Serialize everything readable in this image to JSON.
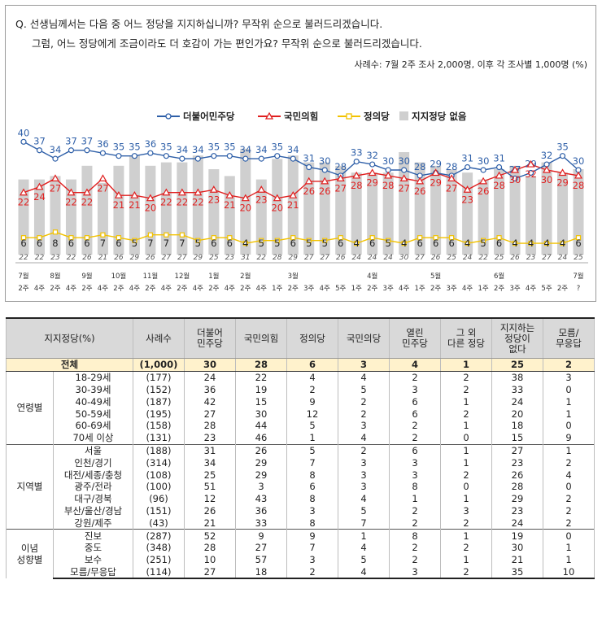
{
  "question": {
    "line1": "Q. 선생님께서는 다음 중 어느 정당을 지지하십니까? 무작위 순으로 불러드리겠습니다.",
    "line2": "그럼, 어느 정당에게 조금이라도 더 호감이 가는 편인가요? 무작위 순으로 불러드리겠습니다.",
    "sample_note": "사례수: 7월 2주 조사 2,000명, 이후 각 조사별 1,000명 (%)"
  },
  "colors": {
    "dem": "#2e5fa8",
    "ppp": "#e02020",
    "justice": "#f2c200",
    "none_bar": "#cfcfcf"
  },
  "chart_data": {
    "type": "line",
    "x_top": [
      "7월",
      "",
      "8월",
      "",
      "9월",
      "",
      "10월",
      "",
      "11월",
      "",
      "12월",
      "",
      "1월",
      "",
      "2월",
      "",
      "",
      "3월",
      "",
      "",
      "",
      "",
      "4월",
      "",
      "",
      "",
      "5월",
      "",
      "",
      "",
      "6월",
      "",
      "",
      "",
      "",
      "7월"
    ],
    "x_week": [
      "2주",
      "4주",
      "2주",
      "4주",
      "2주",
      "4주",
      "2주",
      "4주",
      "2주",
      "4주",
      "2주",
      "4주",
      "2주",
      "4주",
      "2주",
      "4주",
      "1주",
      "2주",
      "3주",
      "4주",
      "5주",
      "1주",
      "2주",
      "3주",
      "4주",
      "1주",
      "2주",
      "3주",
      "4주",
      "1주",
      "2주",
      "3주",
      "4주",
      "5주",
      "2주",
      "?"
    ],
    "series": [
      {
        "name": "더불어민주당",
        "values": [
          40,
          37,
          34,
          37,
          37,
          36,
          35,
          35,
          36,
          35,
          34,
          34,
          35,
          35,
          34,
          34,
          35,
          34,
          31,
          30,
          28,
          33,
          32,
          30,
          30,
          28,
          29,
          28,
          31,
          30,
          31,
          27,
          29,
          32,
          35,
          30
        ]
      },
      {
        "name": "국민의힘",
        "values": [
          22,
          24,
          27,
          22,
          22,
          27,
          21,
          21,
          20,
          22,
          22,
          22,
          23,
          21,
          20,
          23,
          20,
          21,
          26,
          26,
          27,
          28,
          29,
          28,
          27,
          26,
          29,
          27,
          23,
          26,
          28,
          30,
          32,
          30,
          29,
          28
        ]
      },
      {
        "name": "정의당",
        "values": [
          6,
          6,
          8,
          6,
          6,
          7,
          6,
          5,
          7,
          7,
          7,
          5,
          6,
          6,
          4,
          5,
          5,
          6,
          5,
          5,
          6,
          4,
          6,
          5,
          4,
          6,
          6,
          6,
          4,
          5,
          6,
          4,
          4,
          4,
          4,
          6
        ]
      },
      {
        "name": "지지정당 없음",
        "values": [
          22,
          22,
          23,
          22,
          26,
          21,
          26,
          29,
          26,
          27,
          27,
          29,
          25,
          23,
          31,
          22,
          28,
          29,
          27,
          27,
          26,
          24,
          24,
          24,
          30,
          27,
          26,
          25,
          24,
          22,
          25,
          26,
          23,
          27,
          24,
          25
        ]
      }
    ],
    "ylim": [
      0,
      45
    ]
  },
  "table": {
    "headers": [
      "지지정당(%)",
      "사례수",
      "더불어\n민주당",
      "국민의힘",
      "정의당",
      "국민의당",
      "열린\n민주당",
      "그 외\n다른 정당",
      "지지하는\n정당이\n없다",
      "모름/\n무응답"
    ],
    "total": {
      "label": "전체",
      "n": "(1,000)",
      "vals": [
        "30",
        "28",
        "6",
        "3",
        "4",
        "1",
        "25",
        "2"
      ]
    },
    "groups": [
      {
        "name": "연령별",
        "rows": [
          {
            "label": "18-29세",
            "n": "(177)",
            "vals": [
              "24",
              "22",
              "4",
              "4",
              "2",
              "2",
              "38",
              "3"
            ]
          },
          {
            "label": "30-39세",
            "n": "(152)",
            "vals": [
              "36",
              "19",
              "2",
              "5",
              "3",
              "2",
              "33",
              "0"
            ]
          },
          {
            "label": "40-49세",
            "n": "(187)",
            "vals": [
              "42",
              "15",
              "9",
              "2",
              "6",
              "1",
              "24",
              "1"
            ]
          },
          {
            "label": "50-59세",
            "n": "(195)",
            "vals": [
              "27",
              "30",
              "12",
              "2",
              "6",
              "2",
              "20",
              "1"
            ]
          },
          {
            "label": "60-69세",
            "n": "(158)",
            "vals": [
              "28",
              "44",
              "5",
              "3",
              "2",
              "1",
              "18",
              "0"
            ]
          },
          {
            "label": "70세 이상",
            "n": "(131)",
            "vals": [
              "23",
              "46",
              "1",
              "4",
              "2",
              "0",
              "15",
              "9"
            ]
          }
        ]
      },
      {
        "name": "지역별",
        "rows": [
          {
            "label": "서울",
            "n": "(188)",
            "vals": [
              "31",
              "26",
              "5",
              "2",
              "6",
              "1",
              "27",
              "1"
            ]
          },
          {
            "label": "인천/경기",
            "n": "(314)",
            "vals": [
              "34",
              "29",
              "7",
              "3",
              "3",
              "1",
              "23",
              "2"
            ]
          },
          {
            "label": "대전/세종/충청",
            "n": "(108)",
            "vals": [
              "25",
              "29",
              "8",
              "3",
              "3",
              "2",
              "26",
              "4"
            ]
          },
          {
            "label": "광주/전라",
            "n": "(100)",
            "vals": [
              "51",
              "3",
              "6",
              "3",
              "8",
              "0",
              "28",
              "0"
            ]
          },
          {
            "label": "대구/경북",
            "n": "(96)",
            "vals": [
              "12",
              "43",
              "8",
              "4",
              "1",
              "1",
              "29",
              "2"
            ]
          },
          {
            "label": "부산/울산/경남",
            "n": "(151)",
            "vals": [
              "26",
              "36",
              "3",
              "5",
              "2",
              "3",
              "23",
              "2"
            ]
          },
          {
            "label": "강원/제주",
            "n": "(43)",
            "vals": [
              "21",
              "33",
              "8",
              "7",
              "2",
              "2",
              "24",
              "2"
            ]
          }
        ]
      },
      {
        "name": "이념\n성향별",
        "rows": [
          {
            "label": "진보",
            "n": "(287)",
            "vals": [
              "52",
              "9",
              "9",
              "1",
              "8",
              "1",
              "19",
              "0"
            ]
          },
          {
            "label": "중도",
            "n": "(348)",
            "vals": [
              "28",
              "27",
              "7",
              "4",
              "2",
              "2",
              "30",
              "1"
            ]
          },
          {
            "label": "보수",
            "n": "(251)",
            "vals": [
              "10",
              "57",
              "3",
              "5",
              "2",
              "1",
              "21",
              "1"
            ]
          },
          {
            "label": "모름/무응답",
            "n": "(114)",
            "vals": [
              "27",
              "18",
              "2",
              "4",
              "3",
              "2",
              "35",
              "10"
            ]
          }
        ]
      }
    ]
  }
}
